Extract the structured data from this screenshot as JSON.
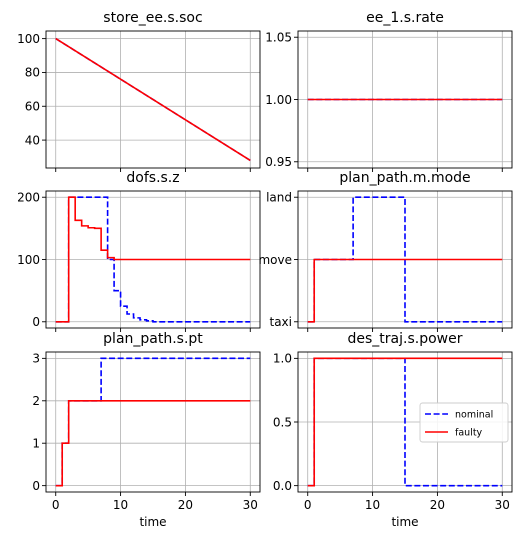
{
  "figure": {
    "xlabel": "time"
  },
  "legend": {
    "entries": [
      {
        "label": "nominal",
        "color": "#0000ff",
        "dash": true
      },
      {
        "label": "faulty",
        "color": "#ff0000",
        "dash": false
      }
    ],
    "placement": "center-right of bottom-right panel"
  },
  "colors": {
    "nominal": "#0000ff",
    "faulty": "#ff0000",
    "grid": "#b0b0b0"
  },
  "chart_data": [
    {
      "type": "line",
      "title": "store_ee.s.soc",
      "xlabel": "",
      "ylabel": "",
      "xlim": [
        -1.5,
        31.5
      ],
      "ylim": [
        23.5,
        104.5
      ],
      "grid": true,
      "xticklabels_visible": false,
      "yticks": [
        40,
        60,
        80,
        100
      ],
      "yticklabels": [
        "40",
        "60",
        "80",
        "100"
      ],
      "xticks": [
        0,
        10,
        20,
        30
      ],
      "series": [
        {
          "name": "nominal",
          "style": "dashed",
          "x": [
            0,
            30
          ],
          "y": [
            100,
            28
          ]
        },
        {
          "name": "faulty",
          "style": "solid",
          "x": [
            0,
            30
          ],
          "y": [
            100,
            28
          ]
        }
      ]
    },
    {
      "type": "line",
      "title": "ee_1.s.rate",
      "xlabel": "",
      "ylabel": "",
      "xlim": [
        -1.5,
        31.5
      ],
      "ylim": [
        0.945,
        1.055
      ],
      "grid": true,
      "xticklabels_visible": false,
      "yticks": [
        0.95,
        1.0,
        1.05
      ],
      "yticklabels": [
        "0.95",
        "1.00",
        "1.05"
      ],
      "xticks": [
        0,
        10,
        20,
        30
      ],
      "series": [
        {
          "name": "nominal",
          "style": "dashed",
          "x": [
            0,
            30
          ],
          "y": [
            1.0,
            1.0
          ]
        },
        {
          "name": "faulty",
          "style": "solid",
          "x": [
            0,
            30
          ],
          "y": [
            1.0,
            1.0
          ]
        }
      ]
    },
    {
      "type": "line",
      "title": "dofs.s.z",
      "xlabel": "",
      "ylabel": "",
      "xlim": [
        -1.5,
        31.5
      ],
      "ylim": [
        -10,
        210
      ],
      "grid": true,
      "xticklabels_visible": false,
      "yticks": [
        0,
        100,
        200
      ],
      "yticklabels": [
        "0",
        "100",
        "200"
      ],
      "xticks": [
        0,
        10,
        20,
        30
      ],
      "series": [
        {
          "name": "nominal",
          "style": "dashed",
          "step": true,
          "x": [
            0,
            2,
            3,
            4,
            5,
            6,
            7,
            8,
            9,
            10,
            11,
            12,
            13,
            14,
            15,
            30
          ],
          "y": [
            0,
            200,
            200,
            200,
            200,
            200,
            200,
            100,
            50,
            25,
            12.5,
            6.25,
            3.1,
            1.6,
            0,
            0
          ]
        },
        {
          "name": "faulty",
          "style": "solid",
          "step": true,
          "x": [
            0,
            2,
            3,
            4,
            5,
            6,
            7,
            8,
            9,
            30
          ],
          "y": [
            0,
            200,
            163,
            154,
            151,
            150,
            115,
            103,
            100,
            100
          ]
        }
      ]
    },
    {
      "type": "line",
      "title": "plan_path.m.mode",
      "xlabel": "",
      "ylabel": "",
      "xlim": [
        -1.5,
        31.5
      ],
      "ylim": [
        -0.1,
        2.1
      ],
      "grid": true,
      "xticklabels_visible": false,
      "yticks": [
        0,
        1,
        2
      ],
      "yticklabels": [
        "taxi",
        "move",
        "land"
      ],
      "xticks": [
        0,
        10,
        20,
        30
      ],
      "series": [
        {
          "name": "nominal",
          "style": "dashed",
          "step": true,
          "x": [
            0,
            1,
            7,
            15,
            30
          ],
          "y": [
            0,
            1,
            2,
            0,
            0
          ]
        },
        {
          "name": "faulty",
          "style": "solid",
          "step": true,
          "x": [
            0,
            1,
            30
          ],
          "y": [
            0,
            1,
            1
          ]
        }
      ]
    },
    {
      "type": "line",
      "title": "plan_path.s.pt",
      "xlabel": "time",
      "ylabel": "",
      "xlim": [
        -1.5,
        31.5
      ],
      "ylim": [
        -0.15,
        3.15
      ],
      "grid": true,
      "xticklabels_visible": true,
      "yticks": [
        0,
        1,
        2,
        3
      ],
      "yticklabels": [
        "0",
        "1",
        "2",
        "3"
      ],
      "xticks": [
        0,
        10,
        20,
        30
      ],
      "xticklabels": [
        "0",
        "10",
        "20",
        "30"
      ],
      "series": [
        {
          "name": "nominal",
          "style": "dashed",
          "step": true,
          "x": [
            0,
            1,
            2,
            7,
            30
          ],
          "y": [
            0,
            1,
            2,
            3,
            3
          ]
        },
        {
          "name": "faulty",
          "style": "solid",
          "step": true,
          "x": [
            0,
            1,
            2,
            30
          ],
          "y": [
            0,
            1,
            2,
            2
          ]
        }
      ]
    },
    {
      "type": "line",
      "title": "des_traj.s.power",
      "xlabel": "time",
      "ylabel": "",
      "xlim": [
        -1.5,
        31.5
      ],
      "ylim": [
        -0.05,
        1.05
      ],
      "grid": true,
      "xticklabels_visible": true,
      "yticks": [
        0,
        0.5,
        1
      ],
      "yticklabels": [
        "0.0",
        "0.5",
        "1.0"
      ],
      "xticks": [
        0,
        10,
        20,
        30
      ],
      "xticklabels": [
        "0",
        "10",
        "20",
        "30"
      ],
      "series": [
        {
          "name": "nominal",
          "style": "dashed",
          "step": true,
          "x": [
            0,
            1,
            15,
            30
          ],
          "y": [
            0,
            1,
            0,
            0
          ]
        },
        {
          "name": "faulty",
          "style": "solid",
          "step": true,
          "x": [
            0,
            1,
            30
          ],
          "y": [
            0,
            1,
            1
          ]
        }
      ]
    }
  ]
}
